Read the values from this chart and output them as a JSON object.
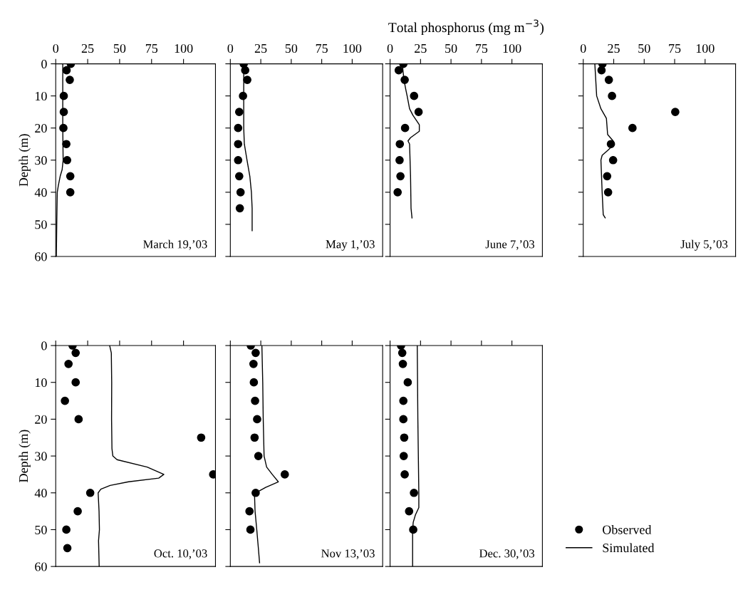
{
  "chart_data": [
    {
      "type": "scatter",
      "ylabel": "Depth (m)",
      "xlim": [
        0,
        125
      ],
      "xticks": [
        0,
        25,
        50,
        75,
        100
      ],
      "ylim": [
        60,
        0
      ],
      "yticks": [
        0,
        10,
        20,
        30,
        40,
        50,
        60
      ],
      "annotations": [
        "March 19,’03"
      ],
      "grid": false,
      "legend": false,
      "series": [
        {
          "color": "#000000",
          "marker": "circle",
          "x": [
            11.8,
            8.5,
            11,
            6.3,
            6.3,
            6,
            8.3,
            8.9,
            11.4,
            11.4
          ],
          "values": [
            0,
            2,
            5,
            10,
            15,
            20,
            25,
            30,
            35,
            40
          ]
        },
        {
          "type": "line",
          "color": "#000000",
          "marker": "none",
          "line_style": "solid",
          "x": [
            5.5,
            5.5,
            5.5,
            5.8,
            5,
            3.5,
            2,
            1.2,
            1,
            0.8,
            0.5
          ],
          "values": [
            0,
            10,
            20,
            30,
            33,
            35,
            38,
            40,
            45,
            50,
            60
          ]
        }
      ]
    },
    {
      "type": "scatter",
      "xlim": [
        0,
        125
      ],
      "xticks": [
        0,
        25,
        50,
        75,
        100
      ],
      "ylim": [
        60,
        0
      ],
      "yticks": [
        0,
        10,
        20,
        30,
        40,
        50,
        60
      ],
      "tick_labels": "x",
      "annotations": [
        "May 1,’03"
      ],
      "grid": false,
      "legend": false,
      "series": [
        {
          "color": "#000000",
          "marker": "circle",
          "x": [
            11,
            12.2,
            13.9,
            10.4,
            7.3,
            6.4,
            6.4,
            6.4,
            7.3,
            8.4,
            7.8
          ],
          "values": [
            0,
            2,
            5,
            10,
            15,
            20,
            25,
            30,
            35,
            40,
            45
          ]
        },
        {
          "type": "line",
          "color": "#000000",
          "marker": "none",
          "line_style": "solid",
          "x": [
            11,
            11,
            11,
            11.5,
            13.7,
            16,
            17.3,
            17.9,
            17.9
          ],
          "values": [
            0,
            10,
            20,
            25,
            30,
            35,
            40,
            45,
            52
          ]
        }
      ]
    },
    {
      "type": "scatter",
      "title": "Total phosphorus (mg m$^{−3}$)",
      "xlim": [
        0,
        125
      ],
      "xticks": [
        0,
        25,
        50,
        75,
        100
      ],
      "ylim": [
        60,
        0
      ],
      "yticks": [
        0,
        10,
        20,
        30,
        40,
        50,
        60
      ],
      "tick_labels": "x",
      "annotations": [
        "June 7,’03"
      ],
      "grid": false,
      "legend": false,
      "series": [
        {
          "color": "#000000",
          "marker": "circle",
          "x": [
            10.9,
            7.1,
            12,
            19.7,
            23.4,
            12.3,
            8,
            7.8,
            8.5,
            6.2
          ],
          "values": [
            0,
            2,
            5,
            10,
            15,
            20,
            25,
            30,
            35,
            40
          ]
        },
        {
          "type": "line",
          "color": "#000000",
          "marker": "none",
          "line_style": "solid",
          "x": [
            10,
            11.4,
            12.9,
            14,
            16,
            18.7,
            24,
            24,
            16.8,
            14.7,
            16,
            16.8,
            17.2,
            18
          ],
          "values": [
            0,
            5,
            8,
            10,
            14,
            16,
            19,
            21,
            23,
            24,
            25,
            35,
            45,
            48
          ]
        }
      ]
    },
    {
      "type": "scatter",
      "xlim": [
        0,
        125
      ],
      "xticks": [
        0,
        25,
        50,
        75,
        100
      ],
      "ylim": [
        60,
        0
      ],
      "yticks": [
        0,
        10,
        20,
        30,
        40,
        50,
        60
      ],
      "tick_labels": "x",
      "annotations": [
        "July 5,’03"
      ],
      "grid": false,
      "legend": false,
      "series": [
        {
          "color": "#000000",
          "marker": "circle",
          "x": [
            15.8,
            15,
            21,
            23.6,
            75.5,
            40.4,
            22.7,
            24.5,
            19.6,
            20.4
          ],
          "values": [
            0,
            2,
            5,
            10,
            15,
            20,
            25,
            30,
            35,
            40
          ]
        },
        {
          "type": "line",
          "color": "#000000",
          "marker": "none",
          "line_style": "solid",
          "x": [
            9.5,
            11,
            14.5,
            19,
            20,
            24.5,
            25.5,
            20,
            15.5,
            14.5,
            15.5,
            16.4,
            18
          ],
          "values": [
            0,
            10,
            14,
            17,
            22,
            24,
            25,
            27,
            28.5,
            30,
            40,
            47,
            48
          ]
        }
      ]
    },
    {
      "type": "scatter",
      "ylabel": "Depth (m)",
      "xlim": [
        0,
        125
      ],
      "xticks": [
        0,
        25,
        50,
        75,
        100
      ],
      "ylim": [
        60,
        0
      ],
      "yticks": [
        0,
        10,
        20,
        30,
        40,
        50,
        60
      ],
      "tick_labels": "y",
      "annotations": [
        "Oct. 10,’03"
      ],
      "grid": false,
      "legend": false,
      "series": [
        {
          "color": "#000000",
          "marker": "circle",
          "x": [
            13.2,
            15.6,
            10,
            15.6,
            7.2,
            17.9,
            113.8,
            123.2,
            27,
            17.2,
            8.3,
            9.1
          ],
          "values": [
            0,
            2,
            5,
            10,
            15,
            20,
            25,
            35,
            40,
            45,
            50,
            55
          ]
        },
        {
          "type": "line",
          "color": "#000000",
          "marker": "none",
          "line_style": "solid",
          "x": [
            42.2,
            43.5,
            43.8,
            43.7,
            44,
            44.7,
            48,
            71.6,
            84.6,
            80.6,
            57,
            42.6,
            35.3,
            33.2,
            33.9,
            34.2,
            33.5,
            34
          ],
          "values": [
            0,
            2,
            10,
            20,
            28,
            30,
            31,
            33,
            35,
            36,
            37,
            38,
            39,
            40,
            45,
            50,
            53,
            60
          ]
        }
      ]
    },
    {
      "type": "scatter",
      "xlim": [
        0,
        125
      ],
      "xticks": [
        0,
        25,
        50,
        75,
        100
      ],
      "ylim": [
        60,
        0
      ],
      "yticks": [
        0,
        10,
        20,
        30,
        40,
        50,
        60
      ],
      "tick_labels": false,
      "annotations": [
        "Nov 13,’03"
      ],
      "grid": false,
      "legend": false,
      "series": [
        {
          "color": "#000000",
          "marker": "circle",
          "x": [
            16.8,
            20.8,
            19,
            19.3,
            20.3,
            22,
            19.9,
            23,
            44.7,
            20.8,
            15.7,
            16.5
          ],
          "values": [
            0,
            2,
            5,
            10,
            15,
            20,
            25,
            30,
            35,
            40,
            45,
            50
          ]
        },
        {
          "type": "line",
          "color": "#000000",
          "marker": "none",
          "line_style": "solid",
          "x": [
            25.9,
            26.6,
            27,
            27.7,
            29.8,
            34.4,
            39.4,
            29,
            20.8,
            19.9,
            20.3,
            21.7,
            23,
            24
          ],
          "values": [
            0,
            10,
            20,
            30,
            33,
            35,
            37,
            38.5,
            40,
            41,
            45,
            50,
            55,
            59
          ]
        }
      ]
    },
    {
      "type": "scatter",
      "xlim": [
        0,
        125
      ],
      "xticks": [
        0,
        25,
        50,
        75,
        100
      ],
      "ylim": [
        60,
        0
      ],
      "yticks": [
        0,
        10,
        20,
        30,
        40,
        50,
        60
      ],
      "tick_labels": false,
      "annotations": [
        "Dec. 30,’03"
      ],
      "grid": false,
      "legend": "right",
      "series": [
        {
          "name": "Observed",
          "color": "#000000",
          "marker": "circle",
          "x": [
            9,
            10,
            10.5,
            14.5,
            10.9,
            10.9,
            11.6,
            11.2,
            12,
            19.6,
            15.6,
            19
          ],
          "values": [
            0,
            2,
            5,
            10,
            15,
            20,
            25,
            30,
            35,
            40,
            45,
            50
          ]
        },
        {
          "name": "Simulated",
          "type": "line",
          "color": "#000000",
          "marker": "none",
          "line_style": "solid",
          "x": [
            22.3,
            22.8,
            23.6,
            23.6,
            20.8,
            19,
            18.5,
            18.5
          ],
          "values": [
            0,
            20,
            40,
            44,
            46,
            48,
            50,
            60
          ]
        }
      ]
    }
  ]
}
